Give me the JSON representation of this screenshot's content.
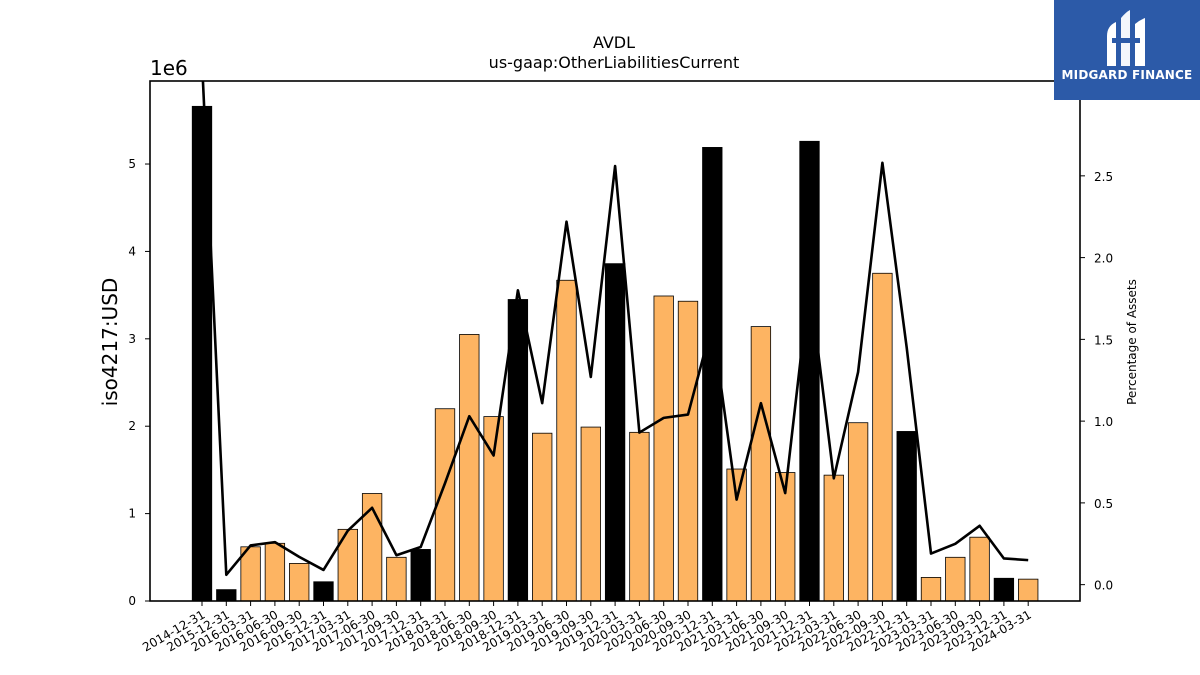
{
  "chart_data": {
    "type": "bar",
    "title": "AVDL",
    "subtitle": "us-gaap:OtherLiabilitiesCurrent",
    "ylabel": "iso4217:USD",
    "y2label": "Percentage of Assets",
    "y_offset_label": "1e6",
    "ylim": [
      0,
      5.95
    ],
    "y2lim": [
      -0.1,
      3.08
    ],
    "yticks": [
      "0",
      "1",
      "2",
      "3",
      "4",
      "5"
    ],
    "y2ticks": [
      "0.0",
      "0.5",
      "1.0",
      "1.5",
      "2.0",
      "2.5"
    ],
    "categories": [
      "2014-12-31",
      "2015-12-31",
      "2016-03-31",
      "2016-06-30",
      "2016-09-30",
      "2016-12-31",
      "2017-03-31",
      "2017-06-30",
      "2017-09-30",
      "2017-12-31",
      "2018-03-31",
      "2018-06-30",
      "2018-09-30",
      "2018-12-31",
      "2019-03-31",
      "2019-06-30",
      "2019-09-30",
      "2019-12-31",
      "2020-03-31",
      "2020-06-30",
      "2020-09-30",
      "2020-12-31",
      "2021-03-31",
      "2021-06-30",
      "2021-09-30",
      "2021-12-31",
      "2022-03-31",
      "2022-06-30",
      "2022-09-30",
      "2022-12-31",
      "2023-03-31",
      "2023-06-30",
      "2023-09-30",
      "2023-12-31",
      "2024-03-31"
    ],
    "series": [
      {
        "values": [
          5.66,
          0.13,
          0.62,
          0.66,
          0.43,
          0.22,
          0.82,
          1.23,
          0.5,
          0.59,
          2.2,
          3.05,
          2.11,
          3.45,
          1.92,
          3.67,
          1.99,
          3.86,
          1.93,
          3.49,
          3.43,
          5.19,
          1.51,
          3.14,
          1.47,
          5.26,
          1.44,
          2.04,
          3.75,
          1.94,
          0.27,
          0.5,
          0.73,
          0.26,
          0.25
        ],
        "annual": [
          true,
          true,
          false,
          false,
          false,
          true,
          false,
          false,
          false,
          true,
          false,
          false,
          false,
          true,
          false,
          false,
          false,
          true,
          false,
          false,
          false,
          true,
          false,
          false,
          false,
          true,
          false,
          false,
          false,
          true,
          false,
          false,
          false,
          true,
          false
        ]
      },
      {
        "values": [
          3.2,
          0.06,
          0.24,
          0.26,
          0.17,
          0.09,
          0.33,
          0.47,
          0.18,
          0.23,
          0.62,
          1.03,
          0.79,
          1.8,
          1.11,
          2.22,
          1.27,
          2.56,
          0.93,
          1.02,
          1.04,
          1.6,
          0.52,
          1.11,
          0.56,
          1.85,
          0.65,
          1.3,
          2.58,
          1.45,
          0.19,
          0.25,
          0.36,
          0.16,
          0.15
        ]
      }
    ],
    "colors": {
      "annual": "#000000",
      "quarterly": "#fdb462",
      "line": "#000000",
      "logo_bg": "#2c5aa8"
    },
    "legend": "none",
    "grid": false
  },
  "logo": {
    "text": "MIDGARD FINANCE",
    "icon": "midgard-logo-icon"
  }
}
